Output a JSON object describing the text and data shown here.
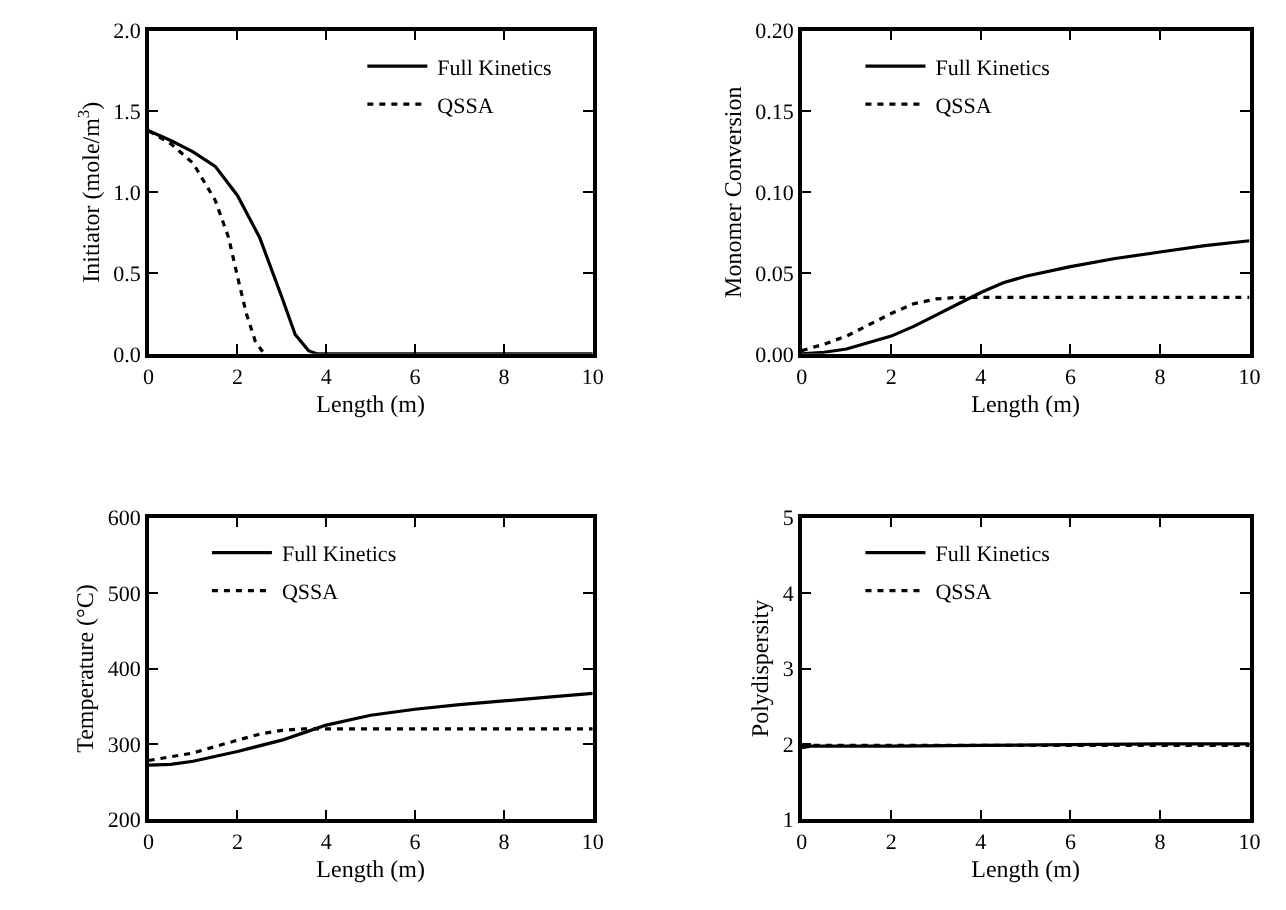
{
  "chart_data": [
    {
      "type": "line",
      "xlabel": "Length (m)",
      "ylabel": "Initiator (mole/m$^{3}$)",
      "xlim": [
        0,
        10
      ],
      "xticks": [
        0,
        2,
        4,
        6,
        8,
        10
      ],
      "ylim": [
        0,
        2
      ],
      "yticks": [
        {
          "value": 0,
          "label": "0.0"
        },
        0.5,
        {
          "value": 1,
          "label": "1.0"
        },
        1.5,
        {
          "value": 2,
          "label": "2.0"
        }
      ],
      "legend": "top right",
      "marker": "none",
      "series": [
        {
          "name": "Full Kinetics",
          "color": "#000000",
          "line_style": "solid",
          "x": [
            0,
            0.5,
            1,
            1.5,
            2,
            2.5,
            3,
            3.3,
            3.6,
            3.8,
            4,
            10
          ],
          "values": [
            1.38,
            1.32,
            1.25,
            1.16,
            0.98,
            0.72,
            0.35,
            0.12,
            0.02,
            0,
            0,
            0
          ]
        },
        {
          "name": "QSSA",
          "color": "#000000",
          "line_style": "dotted",
          "x": [
            0,
            0.5,
            1,
            1.5,
            1.8,
            2,
            2.2,
            2.4,
            2.6
          ],
          "values": [
            1.38,
            1.3,
            1.18,
            0.95,
            0.72,
            0.48,
            0.25,
            0.08,
            0
          ]
        }
      ]
    },
    {
      "type": "line",
      "xlabel": "Length (m)",
      "ylabel": "Monomer Conversion",
      "xlim": [
        0,
        10
      ],
      "xticks": [
        0,
        2,
        4,
        6,
        8,
        10
      ],
      "ylim": [
        0,
        0.2
      ],
      "yticks": [
        {
          "value": 0,
          "label": "0.00"
        },
        0.05,
        {
          "value": 0.1,
          "label": "0.10"
        },
        0.15,
        {
          "value": 0.2,
          "label": "0.20"
        }
      ],
      "legend": "top left",
      "marker": "none",
      "series": [
        {
          "name": "Full Kinetics",
          "color": "#000000",
          "line_style": "solid",
          "x": [
            0,
            0.5,
            1,
            1.5,
            2,
            2.5,
            3,
            3.5,
            4,
            4.5,
            5,
            6,
            7,
            8,
            9,
            10
          ],
          "values": [
            0,
            0.001,
            0.003,
            0.007,
            0.011,
            0.017,
            0.024,
            0.031,
            0.038,
            0.044,
            0.048,
            0.054,
            0.059,
            0.063,
            0.067,
            0.07
          ]
        },
        {
          "name": "QSSA",
          "color": "#000000",
          "line_style": "dotted",
          "x": [
            0,
            0.5,
            1,
            1.5,
            2,
            2.5,
            3,
            3.5,
            4,
            10
          ],
          "values": [
            0.002,
            0.006,
            0.011,
            0.018,
            0.025,
            0.031,
            0.034,
            0.035,
            0.035,
            0.035
          ]
        }
      ]
    },
    {
      "type": "line",
      "xlabel": "Length (m)",
      "ylabel": "Temperature (°C)",
      "xlim": [
        0,
        10
      ],
      "xticks": [
        0,
        2,
        4,
        6,
        8,
        10
      ],
      "ylim": [
        200,
        600
      ],
      "yticks": [
        200,
        300,
        400,
        500,
        600
      ],
      "legend": "top left",
      "marker": "none",
      "series": [
        {
          "name": "Full Kinetics",
          "color": "#000000",
          "line_style": "solid",
          "x": [
            0,
            0.5,
            1,
            2,
            3,
            3.5,
            4,
            5,
            6,
            7,
            8,
            9,
            10
          ],
          "values": [
            272,
            273,
            277,
            290,
            305,
            315,
            325,
            338,
            346,
            352,
            357,
            362,
            367
          ]
        },
        {
          "name": "QSSA",
          "color": "#000000",
          "line_style": "dotted",
          "x": [
            0,
            1,
            2,
            2.5,
            3,
            3.5,
            4,
            10
          ],
          "values": [
            278,
            288,
            305,
            313,
            318,
            320,
            320,
            320
          ]
        }
      ]
    },
    {
      "type": "line",
      "xlabel": "Length (m)",
      "ylabel": "Polydispersity",
      "xlim": [
        0,
        10
      ],
      "xticks": [
        0,
        2,
        4,
        6,
        8,
        10
      ],
      "ylim": [
        1,
        5
      ],
      "yticks": [
        1,
        2,
        3,
        4,
        5
      ],
      "legend": "top left",
      "marker": "none",
      "series": [
        {
          "name": "Full Kinetics",
          "color": "#000000",
          "line_style": "solid",
          "x": [
            0,
            0.2,
            2,
            4,
            6,
            8,
            10
          ],
          "values": [
            1.95,
            1.97,
            1.97,
            1.98,
            1.99,
            2.0,
            2.0
          ]
        },
        {
          "name": "QSSA",
          "color": "#000000",
          "line_style": "dotted",
          "x": [
            0,
            0.2,
            2,
            4,
            6,
            8,
            10
          ],
          "values": [
            1.97,
            1.98,
            1.98,
            1.98,
            1.98,
            1.98,
            1.98
          ]
        }
      ]
    }
  ]
}
